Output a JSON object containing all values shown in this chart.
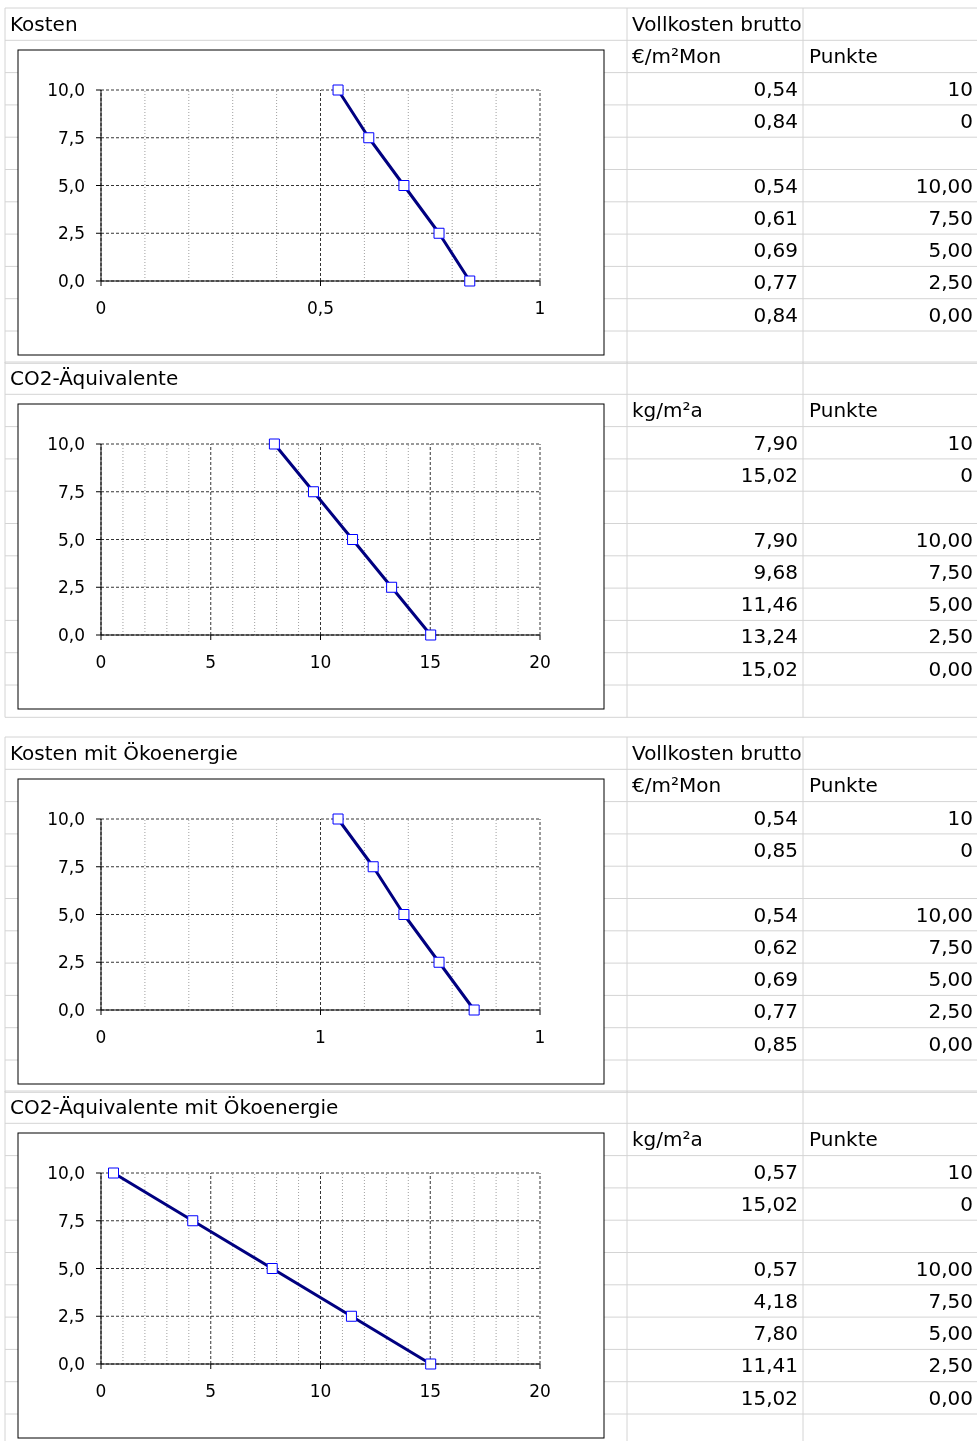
{
  "chart_data": [
    {
      "type": "line",
      "title": "Kosten",
      "marker": "square",
      "grid": true,
      "x": [
        0.54,
        0.61,
        0.69,
        0.77,
        0.84
      ],
      "values": [
        10,
        7.5,
        5,
        2.5,
        0
      ],
      "color": "#000080",
      "xlim": [
        0,
        1
      ],
      "xticks": [
        {
          "value": 0,
          "label": "0"
        },
        {
          "value": 0.5,
          "label": "0,5"
        },
        {
          "value": 1,
          "label": "1"
        }
      ],
      "ylim": [
        0,
        10
      ],
      "yticks": [
        {
          "value": 0,
          "label": "0,0"
        },
        {
          "value": 2.5,
          "label": "2,5"
        },
        {
          "value": 5,
          "label": "5,0"
        },
        {
          "value": 7.5,
          "label": "7,5"
        },
        {
          "value": 10,
          "label": "10,0"
        }
      ],
      "annotations": [
        "Vollkosten brutto",
        "€/m²Mon",
        "Punkte",
        "0,54",
        "10",
        "0,84",
        "0",
        "0,54",
        "10,00",
        "0,61",
        "7,50",
        "0,69",
        "5,00",
        "0,77",
        "2,50",
        "0,84",
        "0,00"
      ]
    },
    {
      "type": "line",
      "title": "CO2-Äquivalente",
      "marker": "square",
      "grid": true,
      "x": [
        7.9,
        9.68,
        11.46,
        13.24,
        15.02
      ],
      "values": [
        10,
        7.5,
        5,
        2.5,
        0
      ],
      "color": "#000080",
      "xlim": [
        0,
        20
      ],
      "xticks": [
        0,
        5,
        10,
        15,
        20
      ],
      "ylim": [
        0,
        10
      ],
      "yticks": [
        {
          "value": 0,
          "label": "0,0"
        },
        {
          "value": 2.5,
          "label": "2,5"
        },
        {
          "value": 5,
          "label": "5,0"
        },
        {
          "value": 7.5,
          "label": "7,5"
        },
        {
          "value": 10,
          "label": "10,0"
        }
      ],
      "annotations": [
        "kg/m²a",
        "Punkte",
        "7,90",
        "10",
        "15,02",
        "0",
        "7,90",
        "10,00",
        "9,68",
        "7,50",
        "11,46",
        "5,00",
        "13,24",
        "2,50",
        "15,02",
        "0,00"
      ]
    },
    {
      "type": "line",
      "title": "Kosten mit Ökoenergie",
      "marker": "square",
      "grid": true,
      "x": [
        0.54,
        0.62,
        0.69,
        0.77,
        0.85
      ],
      "values": [
        10,
        7.5,
        5,
        2.5,
        0
      ],
      "color": "#000080",
      "xlim": [
        0,
        1
      ],
      "xticks": [
        {
          "value": 0,
          "label": "0"
        },
        {
          "value": 0.5,
          "label": "1"
        },
        {
          "value": 1,
          "label": "1"
        }
      ],
      "ylim": [
        0,
        10
      ],
      "yticks": [
        {
          "value": 0,
          "label": "0,0"
        },
        {
          "value": 2.5,
          "label": "2,5"
        },
        {
          "value": 5,
          "label": "5,0"
        },
        {
          "value": 7.5,
          "label": "7,5"
        },
        {
          "value": 10,
          "label": "10,0"
        }
      ],
      "annotations": [
        "Vollkosten brutto",
        "€/m²Mon",
        "Punkte",
        "0,54",
        "10",
        "0,85",
        "0",
        "0,54",
        "10,00",
        "0,62",
        "7,50",
        "0,69",
        "5,00",
        "0,77",
        "2,50",
        "0,85",
        "0,00"
      ]
    },
    {
      "type": "line",
      "title": "CO2-Äquivalente mit Ökoenergie",
      "marker": "square",
      "grid": true,
      "x": [
        0.57,
        4.18,
        7.8,
        11.41,
        15.02
      ],
      "values": [
        10,
        7.5,
        5,
        2.5,
        0
      ],
      "color": "#000080",
      "xlim": [
        0,
        20
      ],
      "xticks": [
        0,
        5,
        10,
        15,
        20
      ],
      "ylim": [
        0,
        10
      ],
      "yticks": [
        {
          "value": 0,
          "label": "0,0"
        },
        {
          "value": 2.5,
          "label": "2,5"
        },
        {
          "value": 5,
          "label": "5,0"
        },
        {
          "value": 7.5,
          "label": "7,5"
        },
        {
          "value": 10,
          "label": "10,0"
        }
      ],
      "annotations": [
        "kg/m²a",
        "Punkte",
        "0,57",
        "10",
        "15,02",
        "0",
        "0,57",
        "10,00",
        "4,18",
        "7,50",
        "7,80",
        "5,00",
        "11,41",
        "2,50",
        "15,02",
        "0,00"
      ]
    }
  ]
}
